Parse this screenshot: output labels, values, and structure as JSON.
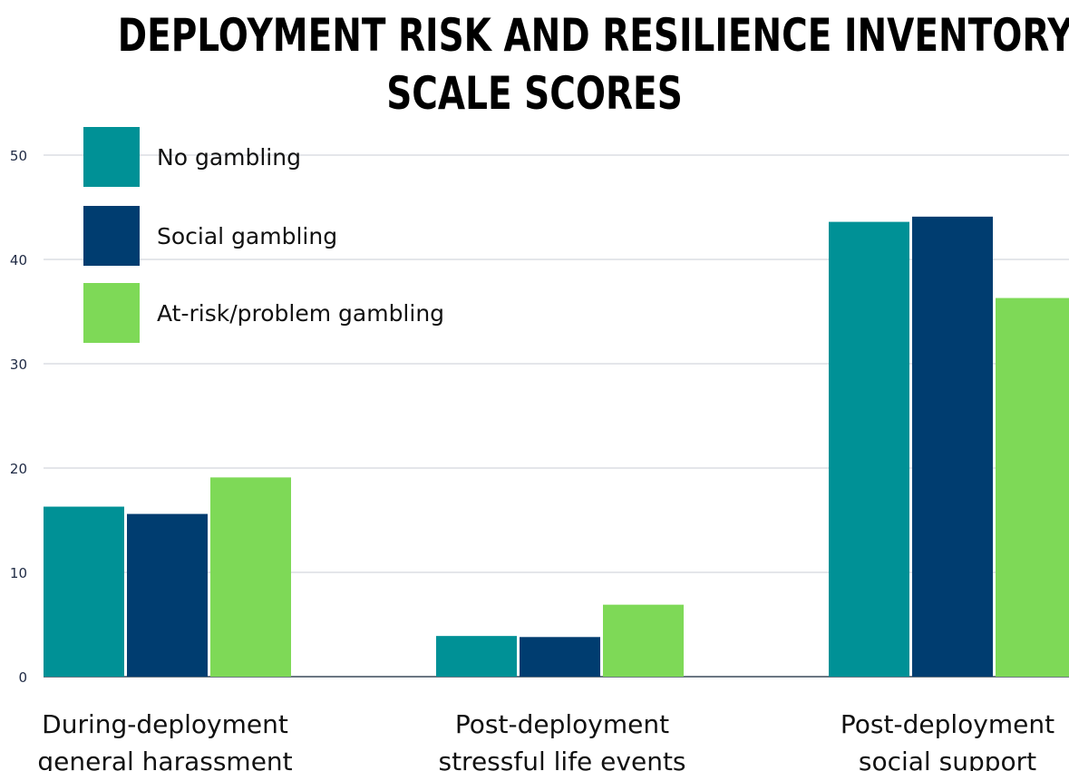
{
  "chart_data": {
    "type": "bar",
    "title_lines": [
      "DEPLOYMENT RISK AND RESILIENCE INVENTORY",
      "SCALE SCORES"
    ],
    "categories": [
      [
        "During-deployment",
        "general harassment"
      ],
      [
        "Post-deployment",
        "stressful life events"
      ],
      [
        "Post-deployment",
        "social support"
      ]
    ],
    "series": [
      {
        "name": "No gambling",
        "color": "#009196",
        "values": [
          16.3,
          3.9,
          43.6
        ]
      },
      {
        "name": "Social gambling",
        "color": "#003d70",
        "values": [
          15.6,
          3.8,
          44.1
        ]
      },
      {
        "name": "At-risk/problem gambling",
        "color": "#7ed957",
        "values": [
          19.1,
          6.9,
          36.3
        ]
      }
    ],
    "yticks": [
      0,
      10,
      20,
      30,
      40,
      50
    ],
    "ylim": [
      0,
      50
    ],
    "grid": true,
    "legend_position": "top-left"
  }
}
